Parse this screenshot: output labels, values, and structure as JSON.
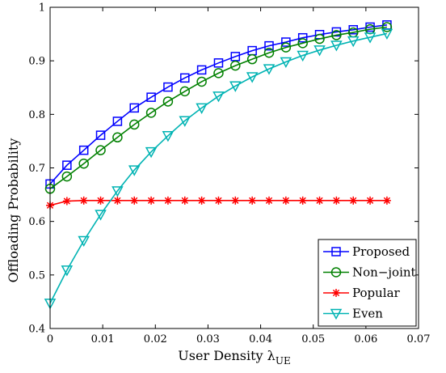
{
  "chart_data": {
    "type": "line",
    "xlabel": "User Density λ",
    "xlabel_sub": "UE",
    "ylabel": "Offloading Probability",
    "xlim": [
      0,
      0.07
    ],
    "ylim": [
      0.4,
      1
    ],
    "xticks": [
      0,
      0.01,
      0.02,
      0.03,
      0.04,
      0.05,
      0.06,
      0.07
    ],
    "xtick_labels": [
      "0",
      "0.01",
      "0.02",
      "0.03",
      "0.04",
      "0.05",
      "0.06",
      "0.07"
    ],
    "yticks": [
      0.4,
      0.5,
      0.6,
      0.7,
      0.8,
      0.9,
      1
    ],
    "ytick_labels": [
      "0.4",
      "0.5",
      "0.6",
      "0.7",
      "0.8",
      "0.9",
      "1"
    ],
    "grid": false,
    "legend_position": "bottom-right",
    "x": [
      0,
      0.0032,
      0.0064,
      0.0096,
      0.0128,
      0.016,
      0.0192,
      0.0224,
      0.0256,
      0.0288,
      0.032,
      0.0352,
      0.0384,
      0.0416,
      0.0448,
      0.048,
      0.0512,
      0.0544,
      0.0576,
      0.0608,
      0.064
    ],
    "series": [
      {
        "name": "Proposed",
        "color": "#0000ff",
        "marker": "square",
        "values": [
          0.67,
          0.705,
          0.733,
          0.761,
          0.787,
          0.812,
          0.832,
          0.851,
          0.868,
          0.883,
          0.896,
          0.908,
          0.919,
          0.928,
          0.935,
          0.943,
          0.949,
          0.954,
          0.958,
          0.963,
          0.967
        ]
      },
      {
        "name": "Non−joint",
        "color": "#008000",
        "marker": "circle",
        "values": [
          0.661,
          0.684,
          0.708,
          0.733,
          0.757,
          0.781,
          0.803,
          0.824,
          0.843,
          0.861,
          0.877,
          0.891,
          0.903,
          0.915,
          0.925,
          0.933,
          0.941,
          0.948,
          0.953,
          0.959,
          0.963
        ]
      },
      {
        "name": "Popular",
        "color": "#ff0000",
        "marker": "asterisk",
        "values": [
          0.63,
          0.638,
          0.639,
          0.639,
          0.639,
          0.639,
          0.639,
          0.639,
          0.639,
          0.639,
          0.639,
          0.639,
          0.639,
          0.639,
          0.639,
          0.639,
          0.639,
          0.639,
          0.639,
          0.639,
          0.639
        ]
      },
      {
        "name": "Even",
        "color": "#00b3b3",
        "marker": "triangle-down",
        "values": [
          0.447,
          0.509,
          0.564,
          0.613,
          0.657,
          0.696,
          0.73,
          0.76,
          0.788,
          0.812,
          0.834,
          0.853,
          0.87,
          0.885,
          0.898,
          0.91,
          0.92,
          0.929,
          0.937,
          0.944,
          0.951
        ]
      }
    ]
  }
}
